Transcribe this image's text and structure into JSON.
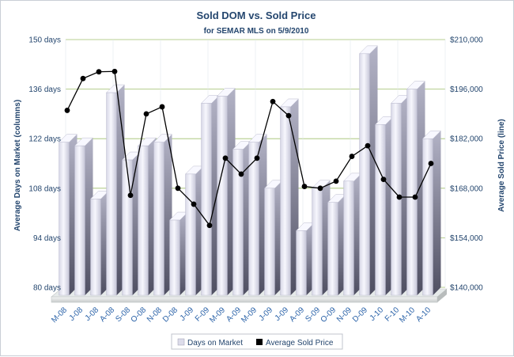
{
  "chart_data": {
    "type": "bar",
    "title": "Sold DOM vs. Sold Price",
    "subtitle": "for SEMAR MLS on 5/9/2010",
    "ylabel": "Average Days on Market (columns)",
    "y2label": "Average Sold Price (line)",
    "ylim": [
      80,
      150
    ],
    "y2lim": [
      140000,
      210000
    ],
    "yticks": [
      "80 days",
      "94 days",
      "108 days",
      "122 days",
      "136 days",
      "150 days"
    ],
    "y2ticks": [
      "$140,000",
      "$154,000",
      "$168,000",
      "$182,000",
      "$196,000",
      "$210,000"
    ],
    "grid": true,
    "legend_position": "bottom",
    "categories": [
      "M-08",
      "J-08",
      "J-08",
      "A-08",
      "S-08",
      "O-08",
      "N-08",
      "D-08",
      "J-09",
      "F-09",
      "M-09",
      "A-09",
      "M-09",
      "J-09",
      "J-09",
      "A-09",
      "S-09",
      "O-09",
      "N-09",
      "D-09",
      "J-10",
      "F-10",
      "M-10",
      "A-10"
    ],
    "series": [
      {
        "name": "Days on Market",
        "type": "column",
        "axis": "left",
        "values": [
          121,
          120,
          105,
          135,
          116,
          120,
          121,
          99,
          112,
          132,
          134,
          119,
          121,
          108,
          131,
          96,
          108,
          104,
          110,
          146,
          126,
          132,
          136,
          122
        ]
      },
      {
        "name": "Average Sold Price",
        "type": "line",
        "axis": "right",
        "values": [
          190000,
          199000,
          200900,
          201000,
          166000,
          189000,
          191000,
          168000,
          163500,
          157500,
          176500,
          172000,
          176500,
          192500,
          188500,
          168500,
          168000,
          170000,
          177000,
          180000,
          170500,
          165500,
          165500,
          175000
        ]
      }
    ],
    "colors": {
      "column_front": "#ececf6",
      "column_side": "#8a8aa0",
      "column_top": "#f8f8ff",
      "line": "#000000",
      "marker": "#000000",
      "grid": "#9fbf6c",
      "text": "#24466e",
      "tick_text": "#2a62a8"
    }
  }
}
